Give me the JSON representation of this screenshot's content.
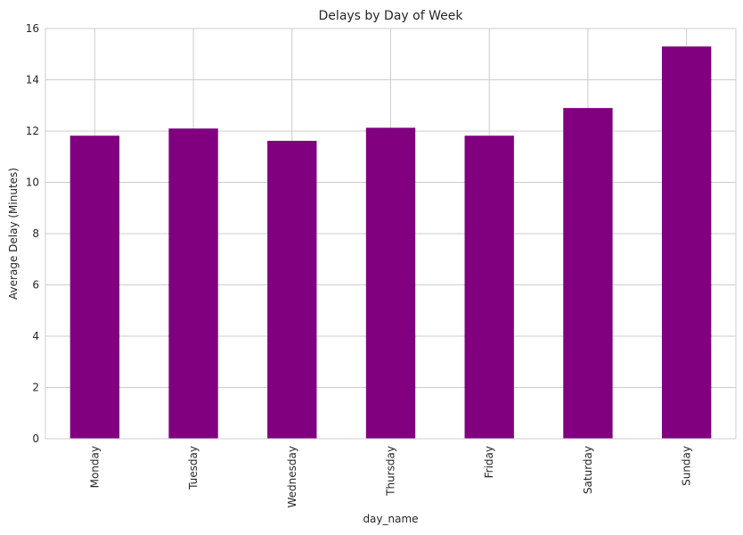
{
  "chart_data": {
    "type": "bar",
    "title": "Delays by Day of Week",
    "xlabel": "day_name",
    "ylabel": "Average Delay (Minutes)",
    "categories": [
      "Monday",
      "Tuesday",
      "Wednesday",
      "Thursday",
      "Friday",
      "Saturday",
      "Sunday"
    ],
    "values": [
      11.82,
      12.1,
      11.62,
      12.13,
      11.82,
      12.9,
      15.3
    ],
    "ylim": [
      0,
      16
    ],
    "yticks": [
      0,
      2,
      4,
      6,
      8,
      10,
      12,
      14,
      16
    ],
    "grid": true,
    "legend": "none",
    "bar_color": "#800080"
  }
}
